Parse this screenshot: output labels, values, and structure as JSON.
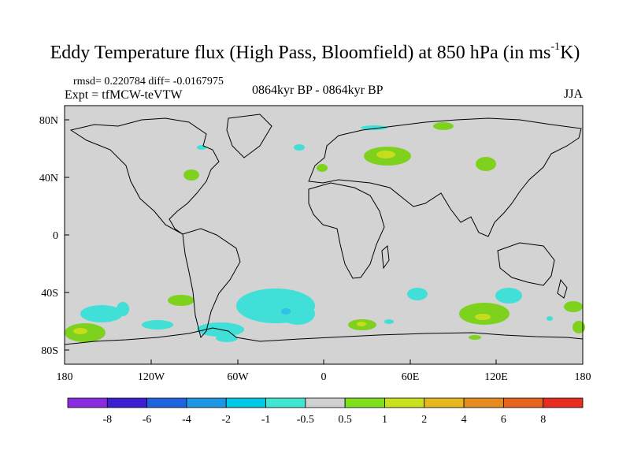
{
  "title": {
    "main": "Eddy Temperature flux (High Pass, Bloomfield) at 850 hPa (in ms",
    "superscript": "-1",
    "end": "K)"
  },
  "stats": "rmsd= 0.220784 diff= -0.0167975",
  "experiment": "Expt = tfMCW-teVTW",
  "period": "0864kyr BP - 0864kyr BP",
  "season": "JJA",
  "axes": {
    "lon_labels": [
      "180",
      "120W",
      "60W",
      "0",
      "60E",
      "120E",
      "180"
    ],
    "lat_labels": [
      "80N",
      "40N",
      "0",
      "40S",
      "80S"
    ]
  },
  "colorbar": {
    "colors": [
      "#8a2be2",
      "#3c1fd0",
      "#1e63e0",
      "#1e96e6",
      "#00c8e6",
      "#40e6d2",
      "#d0d0d0",
      "#7fe01e",
      "#c8e01e",
      "#e6b81e",
      "#e68c1e",
      "#e6641e",
      "#e62d1e"
    ],
    "labels": [
      "-8",
      "-6",
      "-4",
      "-2",
      "-1",
      "-0.5",
      "0.5",
      "1",
      "2",
      "4",
      "6",
      "8"
    ]
  },
  "colors": {
    "background": "#d3d3d3",
    "negative_region": "#40e0d8",
    "light_blue_region": "#30c0e8",
    "positive_region": "#7ed21e",
    "yellow_region": "#c8dc1e"
  }
}
